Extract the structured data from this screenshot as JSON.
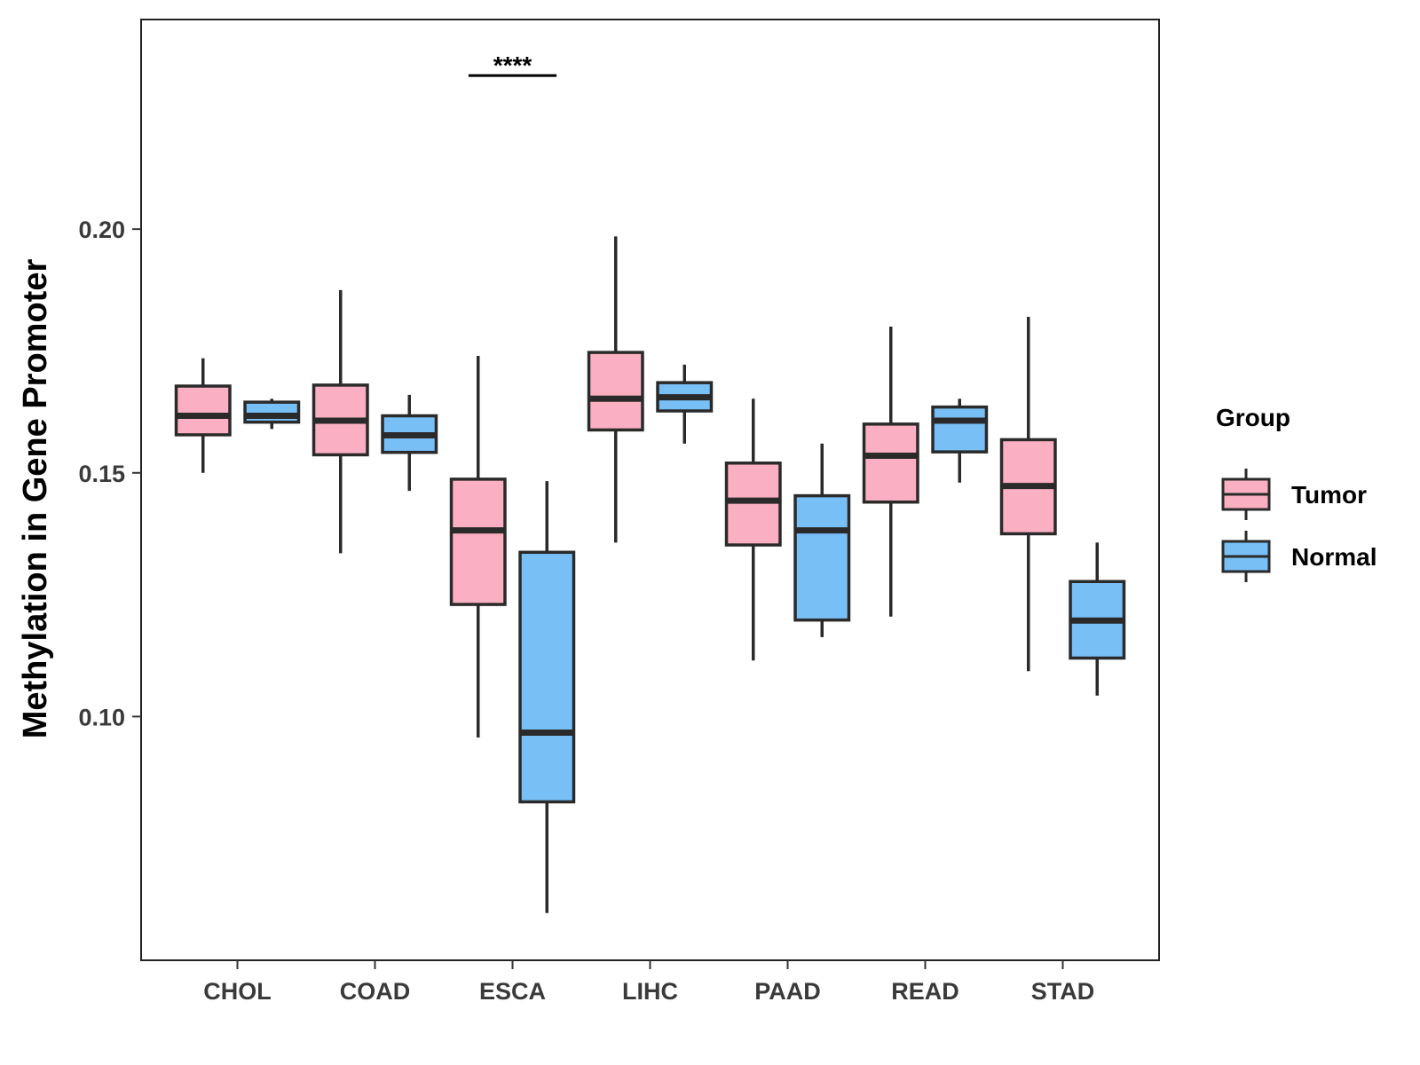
{
  "chart_data": {
    "type": "boxplot",
    "title": "",
    "xlabel": "",
    "ylabel": "Methylation in Gene Promoter",
    "ylim": [
      0.05,
      0.243
    ],
    "yticks": [
      0.1,
      0.15,
      0.2
    ],
    "ytick_labels": [
      "0.10",
      "0.15",
      "0.20"
    ],
    "categories": [
      "CHOL",
      "COAD",
      "ESCA",
      "LIHC",
      "PAAD",
      "READ",
      "STAD"
    ],
    "legend": {
      "title": "Group",
      "position": "right",
      "entries": [
        {
          "name": "Tumor",
          "color": "#FBAFC2"
        },
        {
          "name": "Normal",
          "color": "#78BFF6"
        }
      ]
    },
    "series": [
      {
        "name": "Tumor",
        "color": "#FBAFC2",
        "boxes": [
          {
            "min": 0.15,
            "q1": 0.1578,
            "median": 0.1617,
            "q3": 0.1678,
            "max": 0.1735
          },
          {
            "min": 0.1335,
            "q1": 0.1537,
            "median": 0.1607,
            "q3": 0.168,
            "max": 0.1875
          },
          {
            "min": 0.0957,
            "q1": 0.123,
            "median": 0.1382,
            "q3": 0.1487,
            "max": 0.174
          },
          {
            "min": 0.1357,
            "q1": 0.1588,
            "median": 0.1652,
            "q3": 0.1747,
            "max": 0.1985
          },
          {
            "min": 0.1115,
            "q1": 0.1352,
            "median": 0.1443,
            "q3": 0.152,
            "max": 0.1652
          },
          {
            "min": 0.1205,
            "q1": 0.144,
            "median": 0.1535,
            "q3": 0.16,
            "max": 0.18
          },
          {
            "min": 0.1093,
            "q1": 0.1375,
            "median": 0.1473,
            "q3": 0.1568,
            "max": 0.182
          }
        ]
      },
      {
        "name": "Normal",
        "color": "#78BFF6",
        "boxes": [
          {
            "min": 0.159,
            "q1": 0.1604,
            "median": 0.1617,
            "q3": 0.1645,
            "max": 0.1652
          },
          {
            "min": 0.1463,
            "q1": 0.1542,
            "median": 0.1577,
            "q3": 0.1617,
            "max": 0.166
          },
          {
            "min": 0.0597,
            "q1": 0.0825,
            "median": 0.0967,
            "q3": 0.1337,
            "max": 0.1483
          },
          {
            "min": 0.156,
            "q1": 0.1627,
            "median": 0.1655,
            "q3": 0.1685,
            "max": 0.1722
          },
          {
            "min": 0.1163,
            "q1": 0.1198,
            "median": 0.1382,
            "q3": 0.1453,
            "max": 0.156
          },
          {
            "min": 0.148,
            "q1": 0.1543,
            "median": 0.1607,
            "q3": 0.1635,
            "max": 0.1652
          },
          {
            "min": 0.1043,
            "q1": 0.112,
            "median": 0.1197,
            "q3": 0.1277,
            "max": 0.1357
          }
        ]
      }
    ],
    "annotations": [
      {
        "category": "ESCA",
        "label": "****",
        "y": 0.2315
      }
    ]
  }
}
